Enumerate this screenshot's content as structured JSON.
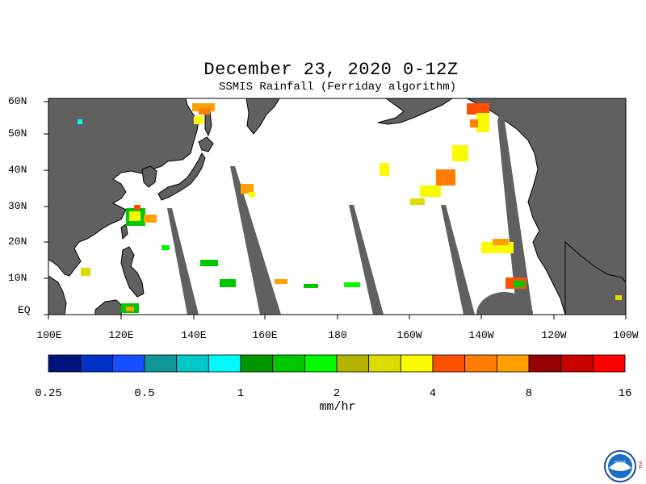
{
  "title": "December 23, 2020 0-12Z",
  "subtitle": "SSMIS Rainfall (Ferriday algorithm)",
  "lat_labels": [
    "60N",
    "50N",
    "40N",
    "30N",
    "20N",
    "10N",
    "EQ"
  ],
  "lon_labels": [
    "100E",
    "120E",
    "140E",
    "160E",
    "180",
    "160W",
    "140W",
    "120W",
    "100W"
  ],
  "colorbar": {
    "colors": [
      "#00147d",
      "#0032c8",
      "#1450ff",
      "#0f9696",
      "#00c8c8",
      "#00fafa",
      "#009600",
      "#00c800",
      "#00fa00",
      "#b4b400",
      "#dcdc00",
      "#fafa00",
      "#ff5000",
      "#ff7d00",
      "#ffa000",
      "#960000",
      "#c80000",
      "#ff0000"
    ],
    "tick_labels": [
      "0.25",
      "0.5",
      "1",
      "2",
      "4",
      "8",
      "16"
    ],
    "units": "mm/hr"
  },
  "logo": {
    "side_text": "PSL",
    "center_text": "NOAA"
  }
}
